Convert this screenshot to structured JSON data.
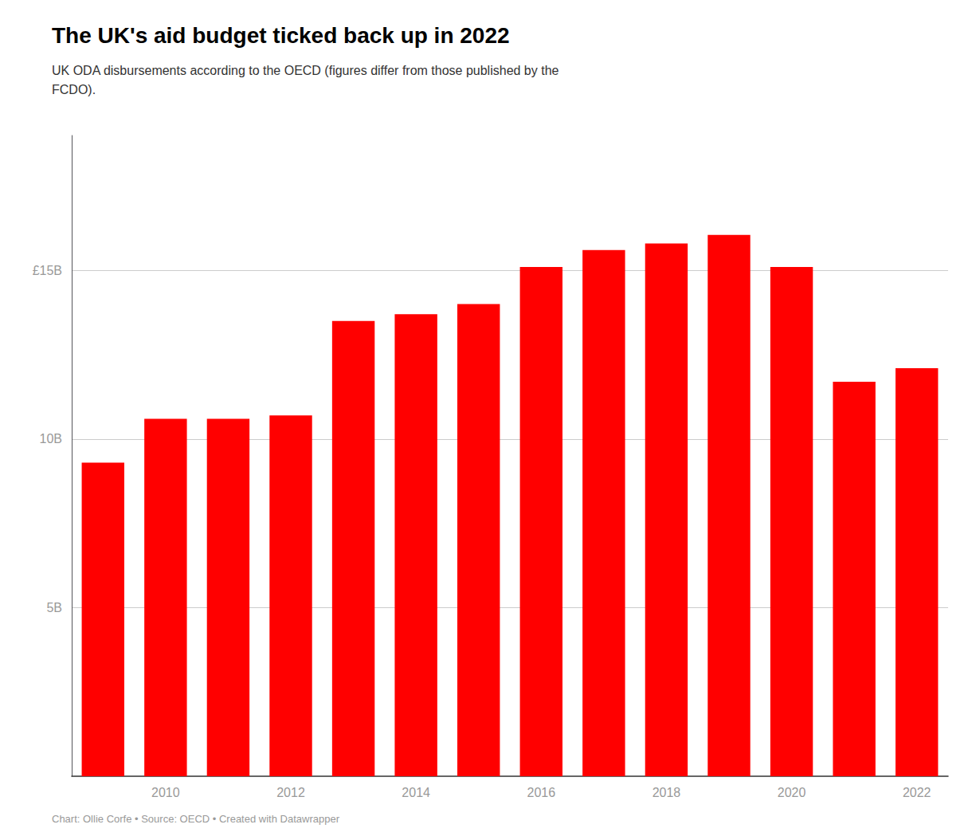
{
  "chart_data": {
    "type": "bar",
    "title": "The UK's aid budget ticked back up in 2022",
    "subtitle": "UK ODA disbursements according to the OECD (figures differ from those published by the\nFCDO).",
    "footer": "Chart: Ollie Corfe • Source: OECD • Created with Datawrapper",
    "categories": [
      null,
      "2010",
      null,
      "2012",
      null,
      "2014",
      null,
      "2016",
      null,
      "2018",
      null,
      "2020",
      null,
      "2022"
    ],
    "values": [
      9.3,
      10.6,
      10.6,
      10.7,
      13.5,
      13.7,
      14.0,
      15.1,
      15.6,
      15.8,
      16.05,
      15.1,
      11.7,
      12.1
    ],
    "color": "#FF0000",
    "ylim": [
      0,
      19
    ],
    "yticks": [
      {
        "value": 5,
        "label": "5B"
      },
      {
        "value": 10,
        "label": "10B"
      },
      {
        "value": 15,
        "label": "£15B"
      }
    ],
    "grid": true
  }
}
